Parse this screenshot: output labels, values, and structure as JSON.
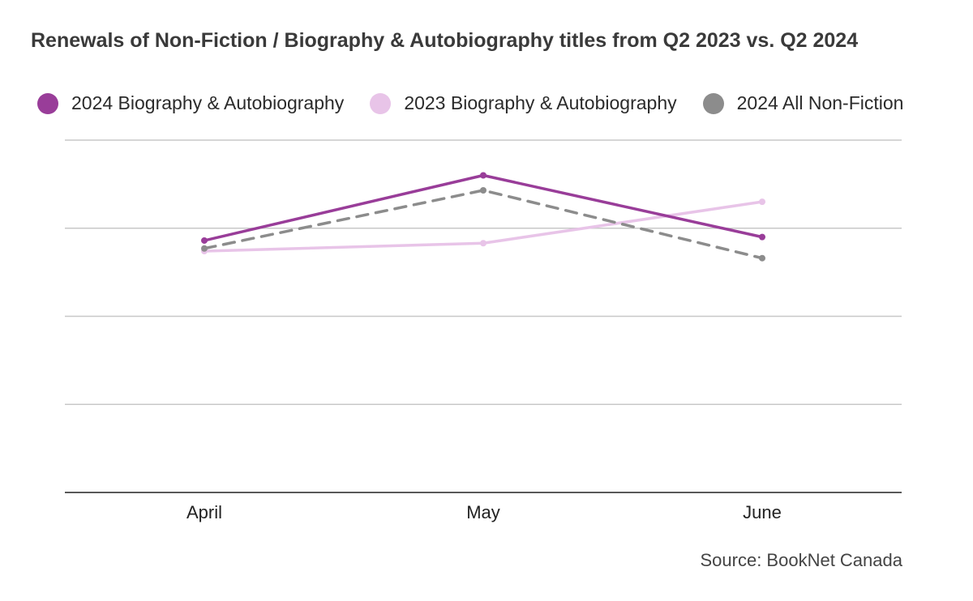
{
  "chart_data": {
    "type": "line",
    "title": "Renewals of Non-Fiction / Biography & Autobiography titles from Q2 2023 vs. Q2 2024",
    "categories": [
      "April",
      "May",
      "June"
    ],
    "ylim": [
      0,
      4
    ],
    "grid": true,
    "legend_position": "top",
    "series": [
      {
        "name": "2024 Biography & Autobiography",
        "values": [
          2.86,
          3.6,
          2.9
        ],
        "color": "#993d99",
        "dash": false
      },
      {
        "name": "2023 Biography & Autobiography",
        "values": [
          2.74,
          2.83,
          3.3
        ],
        "color": "#e8c4e8",
        "dash": false
      },
      {
        "name": "2024 All Non-Fiction",
        "values": [
          2.77,
          3.43,
          2.66
        ],
        "color": "#8c8c8c",
        "dash": true
      }
    ]
  },
  "source": "Source: BookNet Canada"
}
